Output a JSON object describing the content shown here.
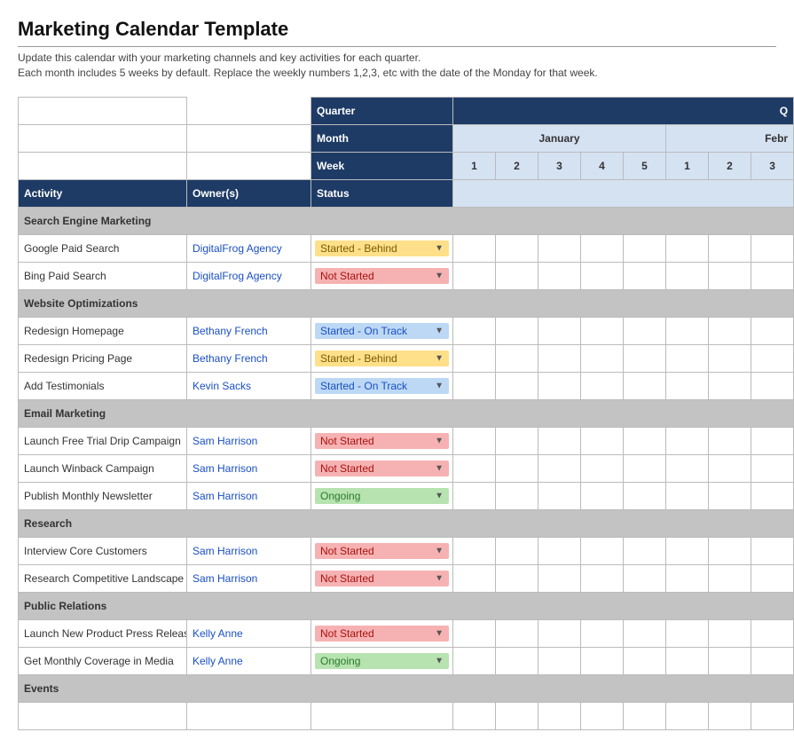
{
  "title": "Marketing Calendar Template",
  "instructions_line1": "Update this calendar with your marketing channels and key activities for each quarter.",
  "instructions_line2": "Each month includes 5 weeks by default. Replace the weekly numbers 1,2,3, etc with the date of the Monday for that week.",
  "headers": {
    "quarter": "Quarter",
    "month": "Month",
    "week": "Week",
    "activity": "Activity",
    "owner": "Owner(s)",
    "status": "Status",
    "q_label": "Q",
    "months": [
      "January",
      "Febr"
    ],
    "weeks_m1": [
      "1",
      "2",
      "3",
      "4",
      "5"
    ],
    "weeks_m2": [
      "1",
      "2",
      "3"
    ]
  },
  "status_styles": {
    "Started - Behind": "st-behind",
    "Not Started": "st-notstart",
    "Started - On Track": "st-ontrack",
    "Ongoing": "st-ongoing"
  },
  "colors": {
    "header_bg": "#1e3b66",
    "light_header_bg": "#d5e2f2",
    "section_bg": "#c3c3c3",
    "highlight_bg": "#fff0b3"
  },
  "rows": [
    {
      "type": "section",
      "label": "Search Engine Marketing"
    },
    {
      "type": "item",
      "activity": "Google Paid Search",
      "owner": "DigitalFrog Agency",
      "status": "Started - Behind",
      "hl": [
        5,
        6,
        7
      ]
    },
    {
      "type": "item",
      "activity": "Bing Paid Search",
      "owner": "DigitalFrog Agency",
      "status": "Not Started",
      "hl": []
    },
    {
      "type": "section",
      "label": "Website Optimizations"
    },
    {
      "type": "item",
      "activity": "Redesign Homepage",
      "owner": "Bethany French",
      "status": "Started - On Track",
      "hl": [
        0,
        1,
        2,
        3
      ]
    },
    {
      "type": "item",
      "activity": "Redesign Pricing Page",
      "owner": "Bethany French",
      "status": "Started - Behind",
      "hl": []
    },
    {
      "type": "item",
      "activity": "Add Testimonials",
      "owner": "Kevin Sacks",
      "status": "Started - On Track",
      "hl": [
        3,
        4,
        5,
        6,
        7
      ]
    },
    {
      "type": "section",
      "label": "Email Marketing"
    },
    {
      "type": "item",
      "activity": "Launch Free Trial Drip Campaign",
      "owner": "Sam Harrison",
      "status": "Not Started",
      "hl": []
    },
    {
      "type": "item",
      "activity": "Launch Winback Campaign",
      "owner": "Sam Harrison",
      "status": "Not Started",
      "hl": []
    },
    {
      "type": "item",
      "activity": "Publish Monthly Newsletter",
      "owner": "Sam Harrison",
      "status": "Ongoing",
      "hl": [
        5,
        7
      ]
    },
    {
      "type": "section",
      "label": "Research"
    },
    {
      "type": "item",
      "activity": "Interview Core Customers",
      "owner": "Sam Harrison",
      "status": "Not Started",
      "hl": [
        4,
        5,
        6,
        7
      ]
    },
    {
      "type": "item",
      "activity": "Research Competitive Landscape",
      "owner": "Sam Harrison",
      "status": "Not Started",
      "hl": []
    },
    {
      "type": "section",
      "label": "Public Relations"
    },
    {
      "type": "item",
      "activity": "Launch New Product Press Releas",
      "owner": "Kelly Anne",
      "status": "Not Started",
      "hl": []
    },
    {
      "type": "item",
      "activity": "Get Monthly Coverage in Media",
      "owner": "Kelly Anne",
      "status": "Ongoing",
      "hl": [
        2,
        7
      ]
    },
    {
      "type": "section",
      "label": "Events"
    },
    {
      "type": "item",
      "activity": "",
      "owner": "",
      "status": "",
      "hl": []
    }
  ]
}
